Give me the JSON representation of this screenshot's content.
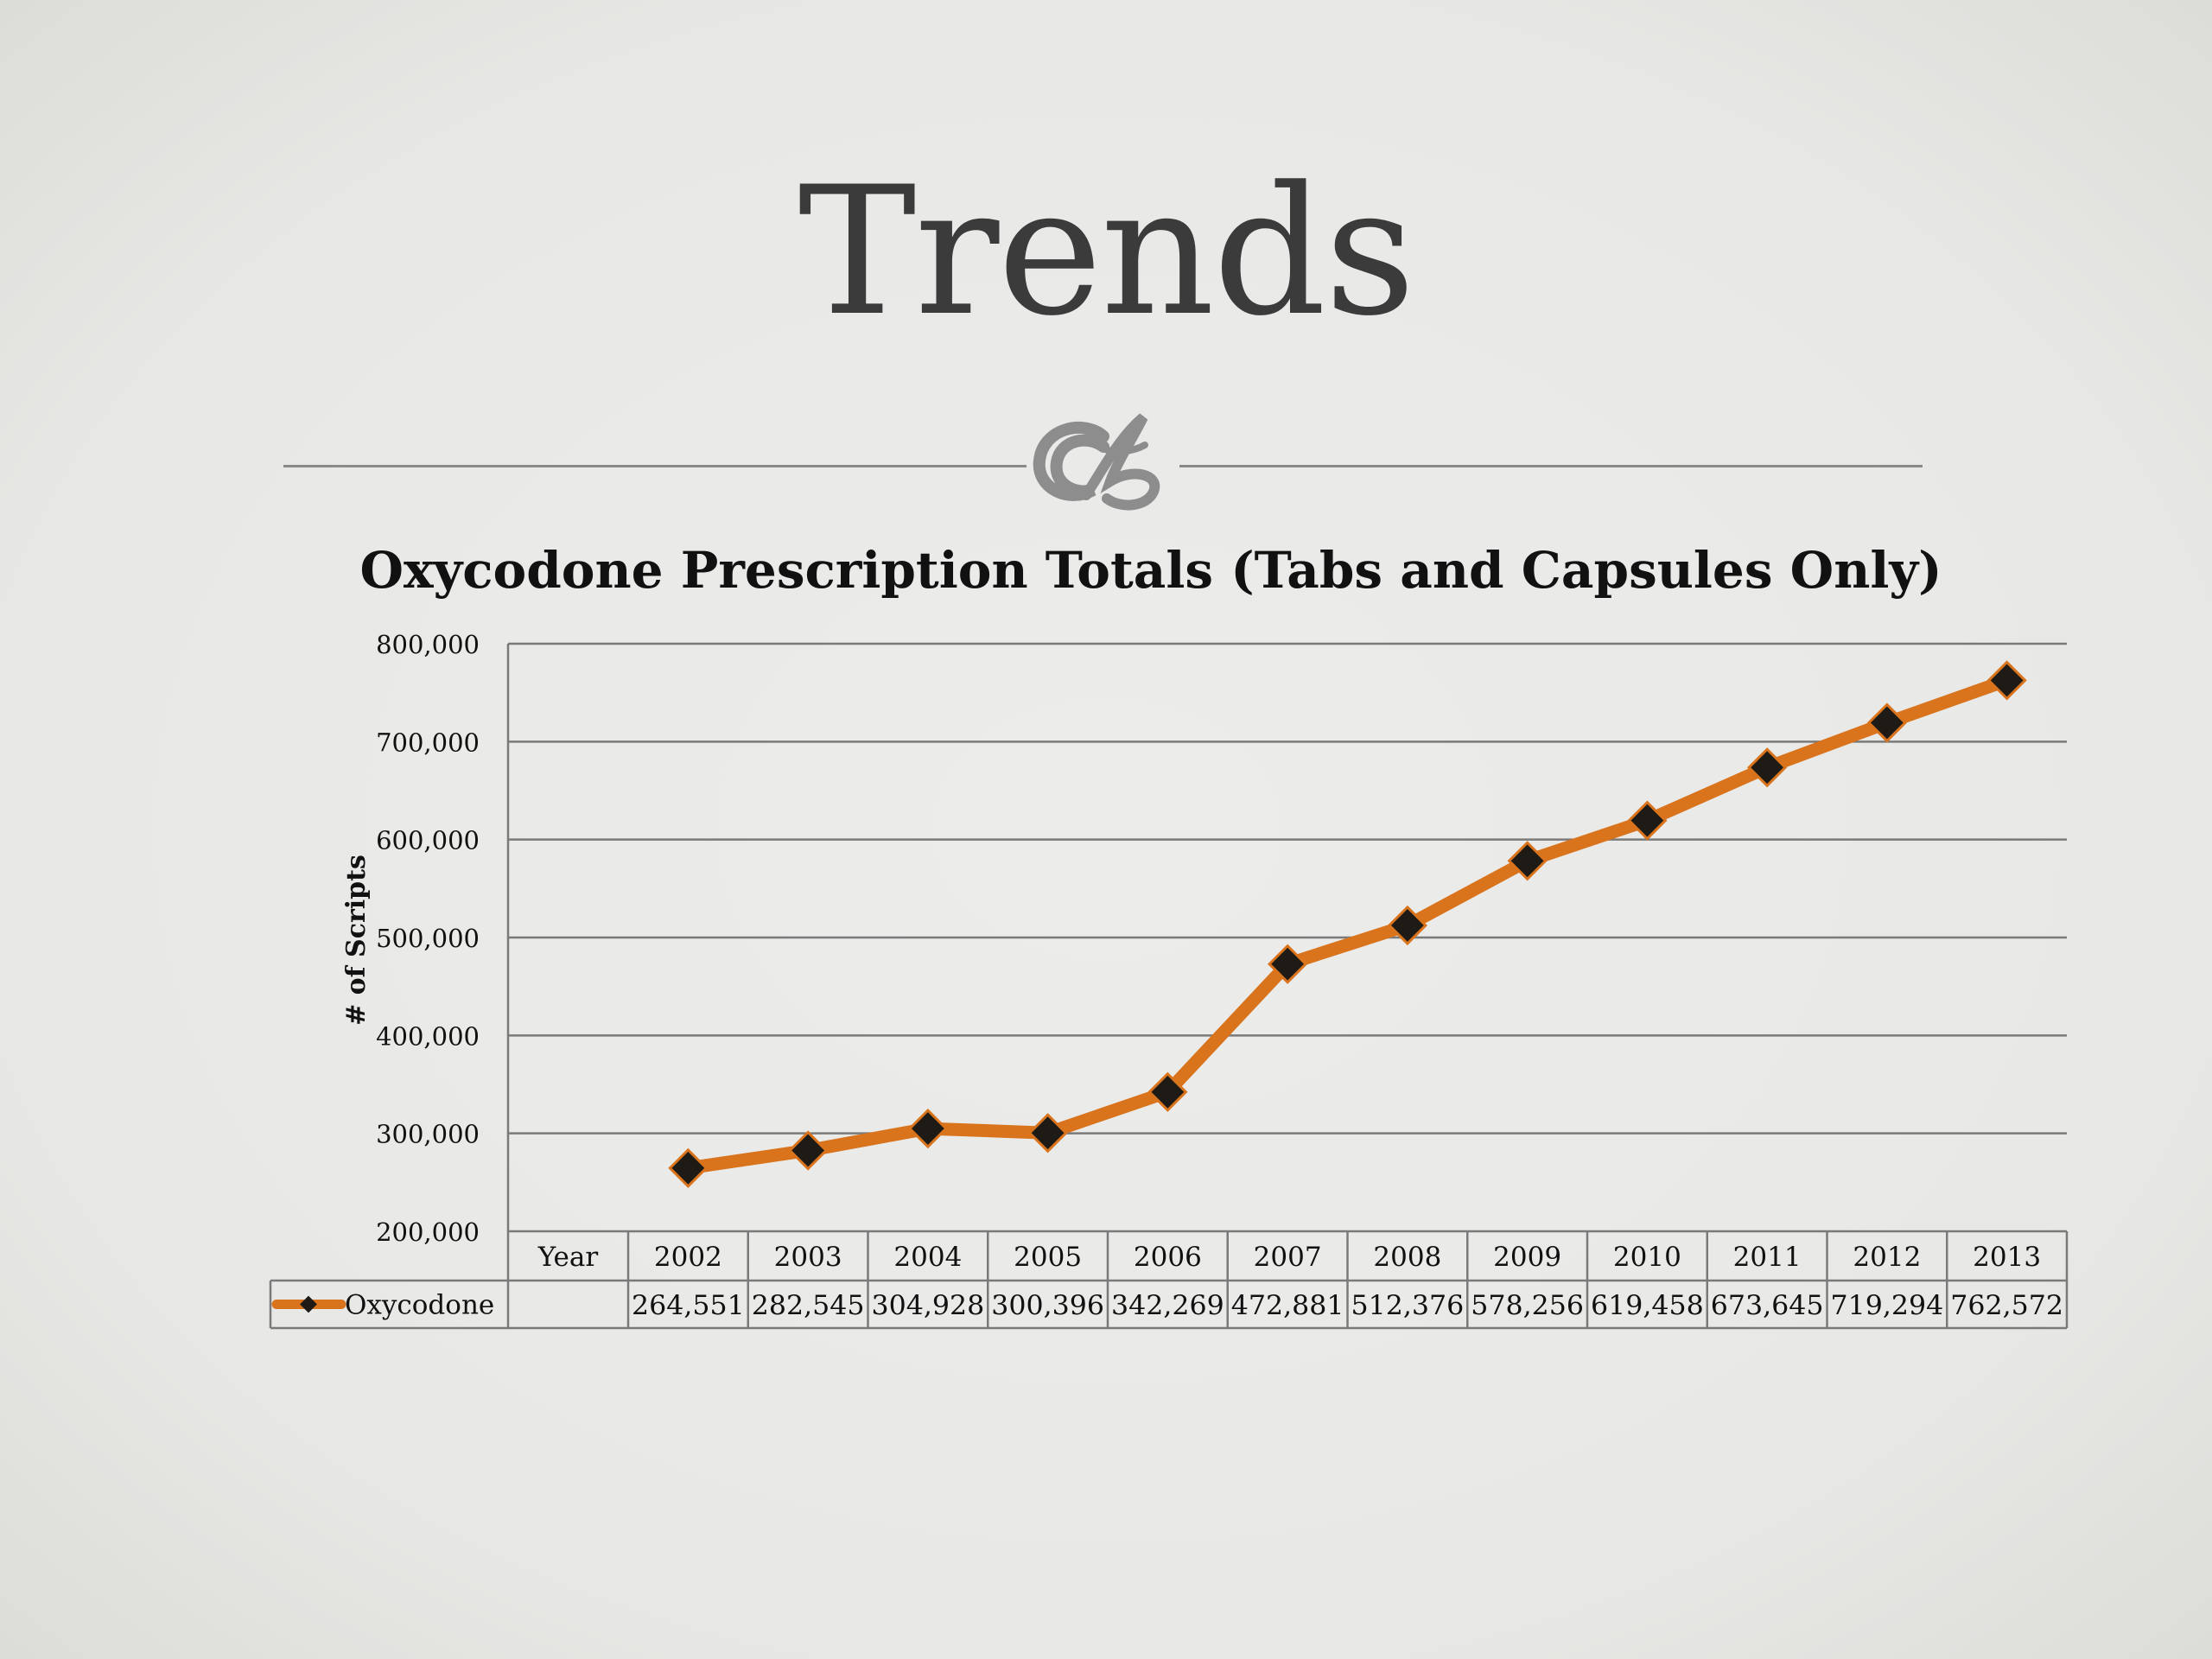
{
  "slide": {
    "title": "Trends"
  },
  "colors": {
    "line": "#d9731c",
    "marker": "#1e1a16",
    "grid": "#7a7a7a",
    "text": "#111111"
  },
  "chart_data": {
    "type": "line",
    "title": "Oxycodone Prescription Totals (Tabs and Capsules Only)",
    "ylabel": "# of Scripts",
    "xlabel": "",
    "ylim": [
      200000,
      800000
    ],
    "yticks": [
      "200,000",
      "300,000",
      "400,000",
      "500,000",
      "600,000",
      "700,000",
      "800,000"
    ],
    "ytick_values": [
      200000,
      300000,
      400000,
      500000,
      600000,
      700000,
      800000
    ],
    "grid": true,
    "data_table": {
      "header_label": "Year",
      "row_label": "Oxycodone",
      "formatted_values": [
        "264,551",
        "282,545",
        "304,928",
        "300,396",
        "342,269",
        "472,881",
        "512,376",
        "578,256",
        "619,458",
        "673,645",
        "719,294",
        "762,572"
      ]
    },
    "categories": [
      "2002",
      "2003",
      "2004",
      "2005",
      "2006",
      "2007",
      "2008",
      "2009",
      "2010",
      "2011",
      "2012",
      "2013"
    ],
    "series": [
      {
        "name": "Oxycodone",
        "values": [
          264551,
          282545,
          304928,
          300396,
          342269,
          472881,
          512376,
          578256,
          619458,
          673645,
          719294,
          762572
        ]
      }
    ]
  }
}
